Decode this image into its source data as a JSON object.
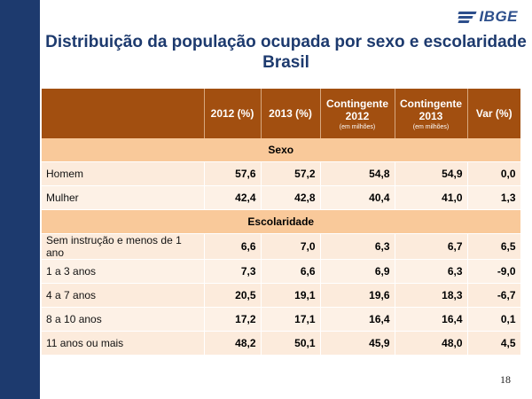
{
  "brand": {
    "logo_text": "IBGE"
  },
  "title": {
    "line1": "Distribuição da população ocupada por sexo e escolaridade",
    "line2": "Brasil"
  },
  "table": {
    "headers": [
      {
        "label": "",
        "sub": ""
      },
      {
        "label": "2012 (%)",
        "sub": ""
      },
      {
        "label": "2013 (%)",
        "sub": ""
      },
      {
        "label": "Contingente 2012",
        "sub": "(em milhões)"
      },
      {
        "label": "Contingente 2013",
        "sub": "(em milhões)"
      },
      {
        "label": "Var (%)",
        "sub": ""
      }
    ],
    "sections": [
      {
        "name": "Sexo",
        "rows": [
          {
            "label": "Homem",
            "values": [
              "57,6",
              "57,2",
              "54,8",
              "54,9",
              "0,0"
            ]
          },
          {
            "label": "Mulher",
            "values": [
              "42,4",
              "42,8",
              "40,4",
              "41,0",
              "1,3"
            ]
          }
        ]
      },
      {
        "name": "Escolaridade",
        "rows": [
          {
            "label": "Sem instrução e menos de 1 ano",
            "values": [
              "6,6",
              "7,0",
              "6,3",
              "6,7",
              "6,5"
            ]
          },
          {
            "label": "1 a 3 anos",
            "values": [
              "7,3",
              "6,6",
              "6,9",
              "6,3",
              "-9,0"
            ]
          },
          {
            "label": "4 a 7 anos",
            "values": [
              "20,5",
              "19,1",
              "19,6",
              "18,3",
              "-6,7"
            ]
          },
          {
            "label": "8 a 10  anos",
            "values": [
              "17,2",
              "17,1",
              "16,4",
              "16,4",
              "0,1"
            ]
          },
          {
            "label": "11 anos ou mais",
            "values": [
              "48,2",
              "50,1",
              "45,9",
              "48,0",
              "4,5"
            ]
          }
        ]
      }
    ]
  },
  "page_number": "18"
}
